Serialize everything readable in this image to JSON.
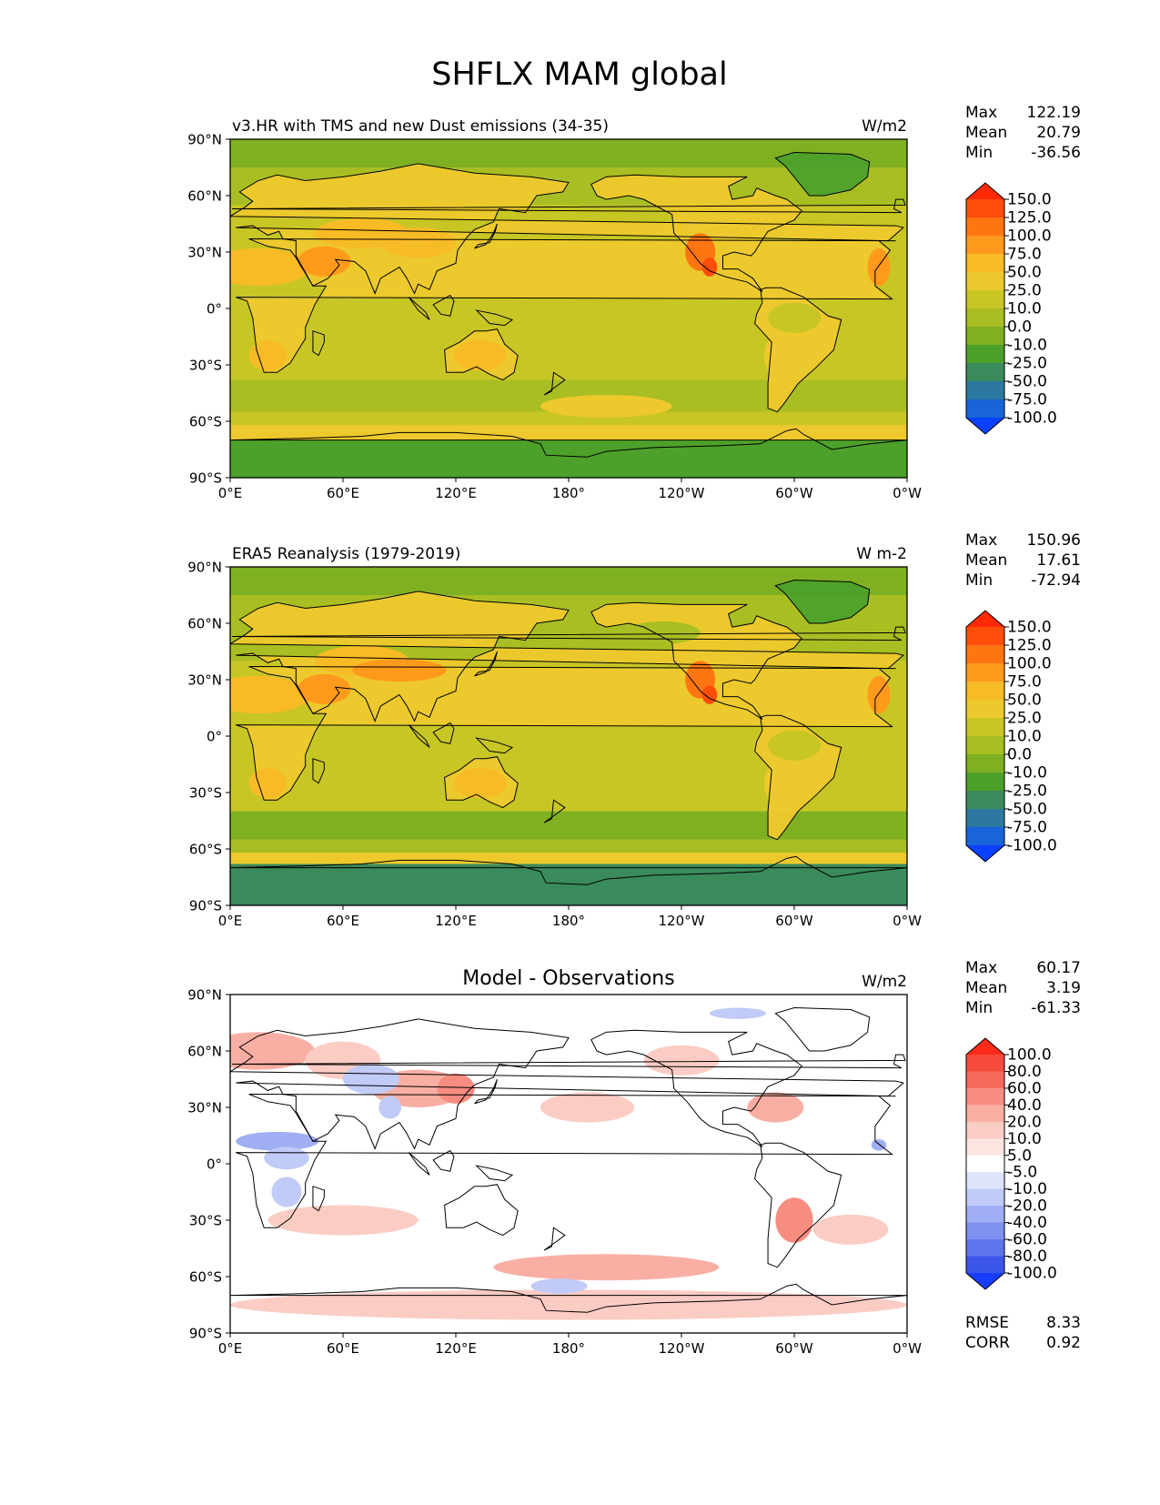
{
  "figure_title": "SHFLX MAM global",
  "lat_ticks": [
    "90°N",
    "60°N",
    "30°N",
    "0°",
    "30°S",
    "60°S",
    "90°S"
  ],
  "lon_ticks": [
    "0°E",
    "60°E",
    "120°E",
    "180°",
    "120°W",
    "60°W",
    "0°W"
  ],
  "stat_labels": {
    "max": "Max",
    "mean": "Mean",
    "min": "Min",
    "rmse": "RMSE",
    "corr": "CORR"
  },
  "panels": [
    {
      "title": "v3.HR with TMS and new Dust emissions (34-35)",
      "units": "W/m2",
      "stats": {
        "max": "122.19",
        "mean": "20.79",
        "min": "-36.56"
      },
      "colorbar": {
        "labels": [
          "150.0",
          "125.0",
          "100.0",
          "75.0",
          "50.0",
          "25.0",
          "10.0",
          "0.0",
          "-10.0",
          "-25.0",
          "-50.0",
          "-75.0",
          "-100.0"
        ],
        "colors": [
          "#ff2a05",
          "#ff4d0a",
          "#ff7512",
          "#ff9a1c",
          "#f7bb26",
          "#eec92d",
          "#c8c624",
          "#a9be22",
          "#7fb022",
          "#4da12a",
          "#3a8a5c",
          "#2c78a0",
          "#1765d8",
          "#0a40ff"
        ]
      }
    },
    {
      "title": "ERA5 Reanalysis (1979-2019)",
      "units": "W m-2",
      "stats": {
        "max": "150.96",
        "mean": "17.61",
        "min": "-72.94"
      },
      "colorbar": {
        "labels": [
          "150.0",
          "125.0",
          "100.0",
          "75.0",
          "50.0",
          "25.0",
          "10.0",
          "0.0",
          "-10.0",
          "-25.0",
          "-50.0",
          "-75.0",
          "-100.0"
        ],
        "colors": [
          "#ff2a05",
          "#ff4d0a",
          "#ff7512",
          "#ff9a1c",
          "#f7bb26",
          "#eec92d",
          "#c8c624",
          "#a9be22",
          "#7fb022",
          "#4da12a",
          "#3a8a5c",
          "#2c78a0",
          "#1765d8",
          "#0a40ff"
        ]
      }
    },
    {
      "title": "Model - Observations",
      "units": "W/m2",
      "stats": {
        "max": "60.17",
        "mean": "3.19",
        "min": "-61.33",
        "rmse": "8.33",
        "corr": "0.92"
      },
      "colorbar": {
        "labels": [
          "100.0",
          "80.0",
          "60.0",
          "40.0",
          "20.0",
          "10.0",
          "5.0",
          "-5.0",
          "-10.0",
          "-20.0",
          "-40.0",
          "-60.0",
          "-80.0",
          "-100.0"
        ],
        "colors": [
          "#ff2a1a",
          "#f64a3c",
          "#f66a5c",
          "#f78d80",
          "#f9aea4",
          "#fbccc4",
          "#fde6e2",
          "#ffffff",
          "#dde3fb",
          "#c1cbf7",
          "#a0aff3",
          "#7f92ef",
          "#5e74ec",
          "#3c55ea",
          "#1a3cff"
        ]
      }
    }
  ],
  "chart_data": [
    {
      "type": "heatmap",
      "title": "v3.HR with TMS and new Dust emissions (34-35)",
      "variable": "SHFLX",
      "season": "MAM",
      "region": "global",
      "units": "W/m2",
      "xlabel": "",
      "ylabel": "",
      "xlim": [
        0,
        360
      ],
      "ylim": [
        -90,
        90
      ],
      "x_ticks": [
        "0°E",
        "60°E",
        "120°E",
        "180°",
        "120°W",
        "60°W",
        "0°W"
      ],
      "y_ticks": [
        "90°N",
        "60°N",
        "30°N",
        "0°",
        "30°S",
        "60°S",
        "90°S"
      ],
      "levels": [
        -100,
        -75,
        -50,
        -25,
        -10,
        0,
        10,
        25,
        50,
        75,
        100,
        125,
        150
      ],
      "max": 122.19,
      "mean": 20.79,
      "min": -36.56
    },
    {
      "type": "heatmap",
      "title": "ERA5 Reanalysis (1979-2019)",
      "variable": "SHFLX",
      "season": "MAM",
      "region": "global",
      "units": "W m-2",
      "xlabel": "",
      "ylabel": "",
      "xlim": [
        0,
        360
      ],
      "ylim": [
        -90,
        90
      ],
      "x_ticks": [
        "0°E",
        "60°E",
        "120°E",
        "180°",
        "120°W",
        "60°W",
        "0°W"
      ],
      "y_ticks": [
        "90°N",
        "60°N",
        "30°N",
        "0°",
        "30°S",
        "60°S",
        "90°S"
      ],
      "levels": [
        -100,
        -75,
        -50,
        -25,
        -10,
        0,
        10,
        25,
        50,
        75,
        100,
        125,
        150
      ],
      "max": 150.96,
      "mean": 17.61,
      "min": -72.94
    },
    {
      "type": "heatmap",
      "title": "Model - Observations",
      "variable": "SHFLX",
      "season": "MAM",
      "region": "global",
      "units": "W/m2",
      "xlabel": "",
      "ylabel": "",
      "xlim": [
        0,
        360
      ],
      "ylim": [
        -90,
        90
      ],
      "x_ticks": [
        "0°E",
        "60°E",
        "120°E",
        "180°",
        "120°W",
        "60°W",
        "0°W"
      ],
      "y_ticks": [
        "90°N",
        "60°N",
        "30°N",
        "0°",
        "30°S",
        "60°S",
        "90°S"
      ],
      "levels": [
        -100,
        -80,
        -60,
        -40,
        -20,
        -10,
        -5,
        5,
        10,
        20,
        40,
        60,
        80,
        100
      ],
      "max": 60.17,
      "mean": 3.19,
      "min": -61.33,
      "rmse": 8.33,
      "corr": 0.92
    }
  ]
}
